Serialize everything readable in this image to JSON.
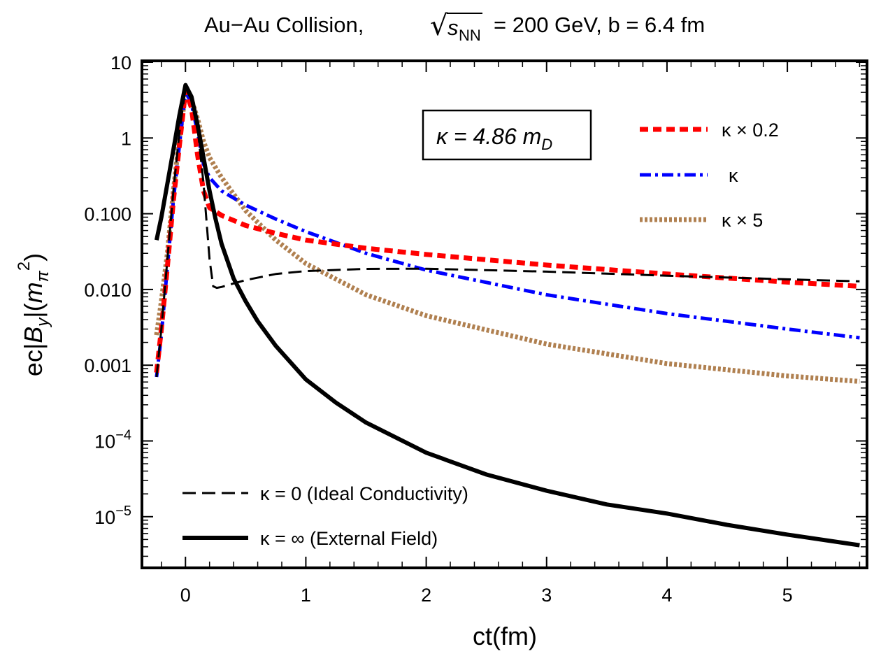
{
  "chart_data": {
    "type": "line",
    "title": "Au−Au Collision, √s_NN = 200 GeV, b = 6.4 fm",
    "title_parts": {
      "pre": "Au−Au Collision,",
      "root": "√",
      "s": "s",
      "sub": "NN",
      "post": "= 200 GeV, b = 6.4 fm"
    },
    "xlabel": "ct(fm)",
    "ylabel": "ec|B_y|(m_π²)",
    "ylabel_parts": {
      "a": "ec|",
      "B": "B",
      "ysub": "y",
      "b": "|(",
      "m": "m",
      "pisub": "π",
      "sup": "2",
      "c": ")"
    },
    "xscale": "linear",
    "yscale": "log",
    "xlim": [
      -0.35,
      5.65
    ],
    "ylim": [
      2.2e-06,
      10
    ],
    "x_ticks": [
      "0",
      "1",
      "2",
      "3",
      "4",
      "5"
    ],
    "y_ticks": [
      {
        "value": 10,
        "label": "10"
      },
      {
        "value": 1,
        "label": "1"
      },
      {
        "value": 0.1,
        "label": "0.100"
      },
      {
        "value": 0.01,
        "label": "0.010"
      },
      {
        "value": 0.001,
        "label": "0.001"
      },
      {
        "value": 0.0001,
        "base": "10",
        "exp": "−4"
      },
      {
        "value": 1e-05,
        "base": "10",
        "exp": "−5"
      }
    ],
    "annotation": {
      "pre": "κ = 4.86 ",
      "m": "m",
      "sub": "D"
    },
    "legend_top_right": [
      "κ × 0.2",
      "κ",
      "κ × 5"
    ],
    "legend_bottom_left": [
      "κ = 0 (Ideal Conductivity)",
      "κ = ∞ (External Field)"
    ],
    "series": [
      {
        "name": "κ × 0.2",
        "color": "#ff0000",
        "dash": "dashed",
        "x": [
          -0.24,
          -0.2,
          -0.15,
          -0.1,
          -0.05,
          0,
          0.05,
          0.1,
          0.15,
          0.2,
          0.3,
          0.5,
          0.75,
          1,
          1.5,
          2,
          3,
          4,
          5,
          5.6
        ],
        "y": [
          0.0008,
          0.003,
          0.02,
          0.15,
          0.8,
          4.2,
          2.5,
          0.6,
          0.2,
          0.12,
          0.095,
          0.07,
          0.055,
          0.045,
          0.035,
          0.029,
          0.021,
          0.016,
          0.0125,
          0.011
        ]
      },
      {
        "name": "κ",
        "color": "#0000ff",
        "dash": "dash-dot",
        "x": [
          -0.24,
          -0.2,
          -0.15,
          -0.1,
          -0.05,
          0,
          0.05,
          0.1,
          0.15,
          0.2,
          0.3,
          0.5,
          0.75,
          1,
          1.5,
          2,
          3,
          4,
          5,
          5.6
        ],
        "y": [
          0.0007,
          0.0025,
          0.02,
          0.15,
          0.8,
          4.2,
          2.8,
          1.2,
          0.45,
          0.3,
          0.2,
          0.13,
          0.085,
          0.058,
          0.03,
          0.018,
          0.0085,
          0.0048,
          0.003,
          0.0023
        ]
      },
      {
        "name": "κ × 5",
        "color": "#b08050",
        "dash": "dotted",
        "x": [
          -0.24,
          -0.2,
          -0.15,
          -0.1,
          -0.05,
          0,
          0.05,
          0.1,
          0.15,
          0.2,
          0.3,
          0.5,
          0.75,
          1,
          1.5,
          2,
          3,
          4,
          5,
          5.6
        ],
        "y": [
          0.0025,
          0.007,
          0.03,
          0.2,
          1,
          3.9,
          3.2,
          1.8,
          0.9,
          0.55,
          0.3,
          0.11,
          0.045,
          0.022,
          0.0085,
          0.0045,
          0.0019,
          0.00105,
          0.00072,
          0.00061
        ]
      },
      {
        "name": "κ = 0 (Ideal Conductivity)",
        "color": "#000000",
        "dash": "long-dash",
        "x": [
          -0.24,
          -0.2,
          -0.15,
          -0.1,
          -0.05,
          0,
          0.05,
          0.1,
          0.15,
          0.2,
          0.23,
          0.26,
          0.3,
          0.4,
          0.5,
          0.75,
          1,
          1.5,
          2,
          3,
          4,
          5,
          5.6
        ],
        "y": [
          0.0007,
          0.003,
          0.025,
          0.2,
          1.2,
          4.5,
          3.2,
          1.4,
          0.25,
          0.025,
          0.011,
          0.0105,
          0.0108,
          0.012,
          0.0133,
          0.016,
          0.0175,
          0.0187,
          0.0188,
          0.0172,
          0.0152,
          0.0136,
          0.0128
        ]
      },
      {
        "name": "κ = ∞ (External Field)",
        "color": "#000000",
        "dash": "solid",
        "x": [
          -0.24,
          -0.2,
          -0.15,
          -0.1,
          -0.05,
          0,
          0.05,
          0.1,
          0.15,
          0.2,
          0.25,
          0.3,
          0.4,
          0.5,
          0.6,
          0.75,
          1,
          1.25,
          1.5,
          2,
          2.5,
          3,
          3.5,
          4,
          4.5,
          5,
          5.6
        ],
        "y": [
          0.045,
          0.09,
          0.25,
          0.7,
          2,
          5,
          3.5,
          1.5,
          0.55,
          0.2,
          0.085,
          0.04,
          0.014,
          0.007,
          0.0038,
          0.0018,
          0.00065,
          0.00032,
          0.000175,
          7e-05,
          3.6e-05,
          2.2e-05,
          1.45e-05,
          1.1e-05,
          7.8e-06,
          5.8e-06,
          4.2e-06
        ]
      }
    ]
  }
}
